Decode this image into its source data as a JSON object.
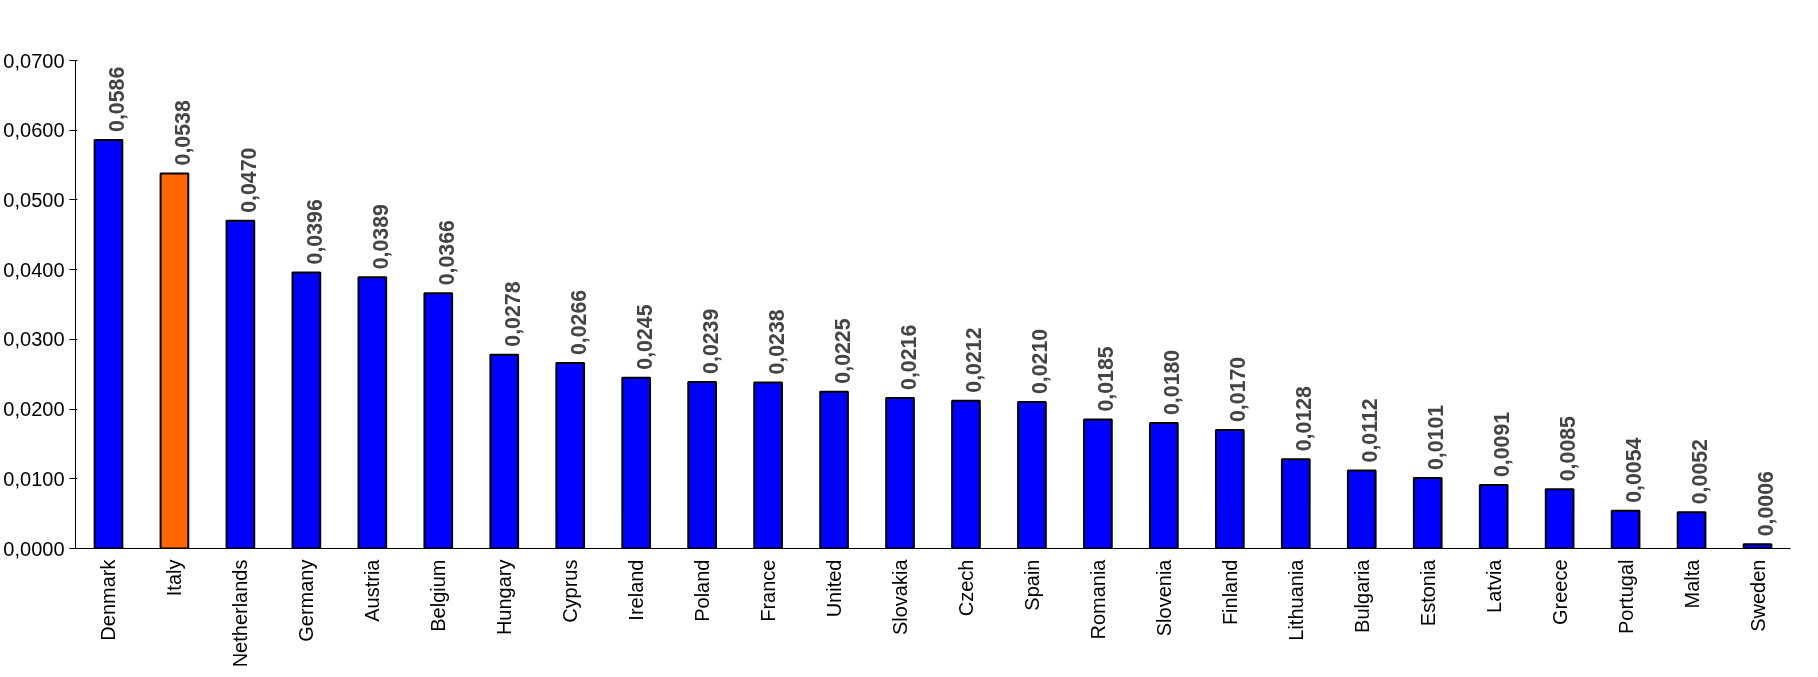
{
  "chart_data": {
    "type": "bar",
    "categories": [
      "Denmark",
      "Italy",
      "Netherlands",
      "Germany",
      "Austria",
      "Belgium",
      "Hungary",
      "Cyprus",
      "Ireland",
      "Poland",
      "France",
      "United",
      "Slovakia",
      "Czech",
      "Spain",
      "Romania",
      "Slovenia",
      "Finland",
      "Lithuania",
      "Bulgaria",
      "Estonia",
      "Latvia",
      "Greece",
      "Portugal",
      "Malta",
      "Sweden"
    ],
    "values": [
      0.0586,
      0.0538,
      0.047,
      0.0396,
      0.0389,
      0.0366,
      0.0278,
      0.0266,
      0.0245,
      0.0239,
      0.0238,
      0.0225,
      0.0216,
      0.0212,
      0.021,
      0.0185,
      0.018,
      0.017,
      0.0128,
      0.0112,
      0.0101,
      0.0091,
      0.0085,
      0.0054,
      0.0052,
      0.0006
    ],
    "value_labels": [
      "0,0586",
      "0,0538",
      "0,0470",
      "0,0396",
      "0,0389",
      "0,0366",
      "0,0278",
      "0,0266",
      "0,0245",
      "0,0239",
      "0,0238",
      "0,0225",
      "0,0216",
      "0,0212",
      "0,0210",
      "0,0185",
      "0,0180",
      "0,0170",
      "0,0128",
      "0,0112",
      "0,0101",
      "0,0091",
      "0,0085",
      "0,0054",
      "0,0052",
      "0,0006"
    ],
    "colors": [
      "#0000ff",
      "#ff6600",
      "#0000ff",
      "#0000ff",
      "#0000ff",
      "#0000ff",
      "#0000ff",
      "#0000ff",
      "#0000ff",
      "#0000ff",
      "#0000ff",
      "#0000ff",
      "#0000ff",
      "#0000ff",
      "#0000ff",
      "#0000ff",
      "#0000ff",
      "#0000ff",
      "#0000ff",
      "#0000ff",
      "#0000ff",
      "#0000ff",
      "#0000ff",
      "#0000ff",
      "#0000ff",
      "#0000ff"
    ],
    "ylim": [
      0,
      0.07
    ],
    "yticks": [
      {
        "value": 0,
        "label": "0,0000"
      },
      {
        "value": 0.01,
        "label": "0,0100"
      },
      {
        "value": 0.02,
        "label": "0,0200"
      },
      {
        "value": 0.03,
        "label": "0,0300"
      },
      {
        "value": 0.04,
        "label": "0,0400"
      },
      {
        "value": 0.05,
        "label": "0,0500"
      },
      {
        "value": 0.06,
        "label": "0,0600"
      },
      {
        "value": 0.07,
        "label": "0,0700"
      }
    ],
    "grid": false
  }
}
